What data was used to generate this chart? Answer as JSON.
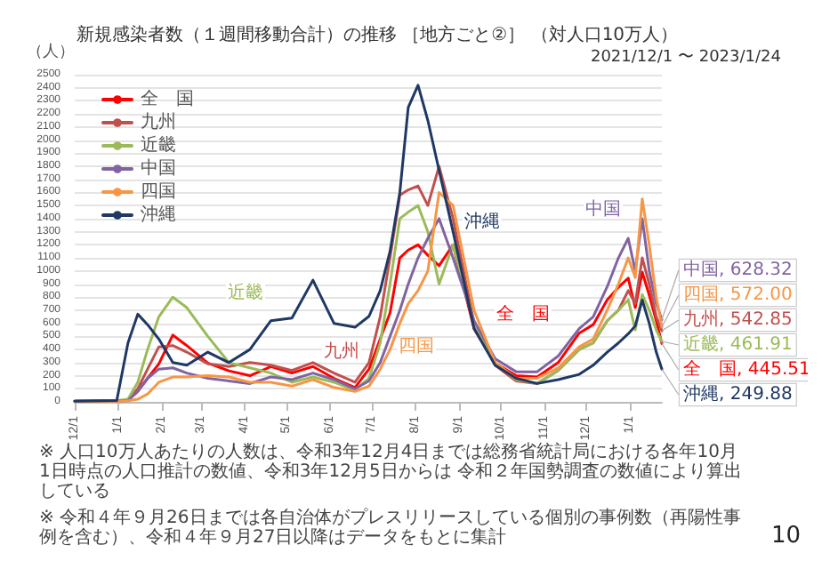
{
  "chart_data": {
    "type": "line",
    "title": "新規感染者数（１週間移動合計）の推移 ［地方ごと②］ （対人口10万人）",
    "subtitle": "2021/12/1 〜 2023/1/24",
    "ylabel": "（人）",
    "x": [
      "2021-12-01",
      "2021-12-31",
      "2022-01-08",
      "2022-01-15",
      "2022-01-22",
      "2022-01-30",
      "2022-02-09",
      "2022-02-19",
      "2022-03-06",
      "2022-03-21",
      "2022-04-05",
      "2022-04-20",
      "2022-05-05",
      "2022-05-20",
      "2022-06-04",
      "2022-06-19",
      "2022-06-29",
      "2022-07-07",
      "2022-07-14",
      "2022-07-21",
      "2022-07-27",
      "2022-08-03",
      "2022-08-10",
      "2022-08-18",
      "2022-08-28",
      "2022-09-12",
      "2022-09-27",
      "2022-10-12",
      "2022-10-27",
      "2022-11-11",
      "2022-11-26",
      "2022-12-06",
      "2022-12-16",
      "2022-12-24",
      "2022-12-31",
      "2023-01-05",
      "2023-01-10",
      "2023-01-15",
      "2023-01-20",
      "2023-01-24"
    ],
    "series": [
      {
        "name": "全　国",
        "color": "#ff0000",
        "values": [
          5,
          8,
          10,
          80,
          180,
          290,
          510,
          430,
          297,
          237,
          200,
          270,
          220,
          270,
          180,
          110,
          250,
          480,
          680,
          1100,
          1160,
          1200,
          1120,
          1040,
          1200,
          557,
          297,
          200,
          190,
          300,
          525,
          590,
          780,
          875,
          945,
          720,
          990,
          815,
          620,
          445.51
        ],
        "value_labels": [
          null,
          null,
          null,
          null,
          null,
          null,
          null,
          null,
          null,
          null,
          null,
          null,
          null,
          null,
          null,
          null,
          null,
          null,
          null,
          null,
          null,
          null,
          null,
          null,
          null,
          null,
          null,
          null,
          null,
          null,
          null,
          null,
          null,
          null,
          null,
          null,
          null,
          null,
          null,
          "全　国, 445.51"
        ]
      },
      {
        "name": "九州",
        "color": "#c0504d",
        "values": [
          5,
          8,
          12,
          100,
          250,
          420,
          430,
          380,
          290,
          270,
          300,
          280,
          240,
          300,
          220,
          150,
          300,
          650,
          1100,
          1580,
          1620,
          1650,
          1500,
          1800,
          1400,
          600,
          280,
          160,
          140,
          240,
          400,
          450,
          620,
          700,
          850,
          750,
          1100,
          900,
          650,
          542.85
        ],
        "value_labels": [
          null,
          null,
          null,
          null,
          null,
          null,
          null,
          null,
          null,
          null,
          null,
          null,
          null,
          null,
          null,
          null,
          null,
          null,
          null,
          null,
          null,
          null,
          null,
          null,
          null,
          null,
          null,
          null,
          null,
          null,
          null,
          null,
          null,
          null,
          null,
          null,
          null,
          null,
          null,
          "九州, 542.85"
        ]
      },
      {
        "name": "近畿",
        "color": "#9bbb59",
        "values": [
          5,
          8,
          20,
          150,
          400,
          650,
          800,
          720,
          500,
          300,
          260,
          220,
          150,
          190,
          150,
          90,
          180,
          450,
          900,
          1400,
          1450,
          1500,
          1300,
          900,
          1200,
          600,
          300,
          170,
          140,
          240,
          400,
          450,
          620,
          700,
          780,
          550,
          820,
          700,
          550,
          461.91
        ],
        "value_labels": [
          null,
          null,
          null,
          null,
          null,
          null,
          null,
          null,
          null,
          null,
          null,
          null,
          null,
          null,
          null,
          null,
          null,
          null,
          null,
          null,
          null,
          null,
          null,
          null,
          null,
          null,
          null,
          null,
          null,
          null,
          null,
          null,
          null,
          null,
          null,
          null,
          null,
          null,
          null,
          "近畿, 461.91"
        ]
      },
      {
        "name": "中国",
        "color": "#8064a2",
        "values": [
          5,
          8,
          10,
          80,
          180,
          250,
          260,
          220,
          180,
          160,
          140,
          190,
          170,
          220,
          170,
          100,
          160,
          300,
          500,
          700,
          900,
          1100,
          1250,
          1400,
          1100,
          620,
          330,
          230,
          230,
          350,
          560,
          650,
          880,
          1100,
          1250,
          1000,
          1400,
          1000,
          750,
          628.32
        ],
        "value_labels": [
          null,
          null,
          null,
          null,
          null,
          null,
          null,
          null,
          null,
          null,
          null,
          null,
          null,
          null,
          null,
          null,
          null,
          null,
          null,
          null,
          null,
          null,
          null,
          null,
          null,
          null,
          null,
          null,
          null,
          null,
          null,
          null,
          null,
          null,
          null,
          null,
          null,
          null,
          null,
          "中国, 628.32"
        ]
      },
      {
        "name": "四国",
        "color": "#f79646",
        "values": [
          3,
          5,
          8,
          20,
          60,
          150,
          190,
          190,
          200,
          190,
          150,
          150,
          120,
          170,
          110,
          80,
          120,
          250,
          400,
          600,
          750,
          850,
          1000,
          1600,
          1500,
          700,
          300,
          180,
          180,
          260,
          420,
          480,
          700,
          900,
          1100,
          950,
          1550,
          1200,
          800,
          572.0
        ],
        "value_labels": [
          null,
          null,
          null,
          null,
          null,
          null,
          null,
          null,
          null,
          null,
          null,
          null,
          null,
          null,
          null,
          null,
          null,
          null,
          null,
          null,
          null,
          null,
          null,
          null,
          null,
          null,
          null,
          null,
          null,
          null,
          null,
          null,
          null,
          null,
          null,
          null,
          null,
          null,
          null,
          "四国, 572.00"
        ]
      },
      {
        "name": "沖縄",
        "color": "#1f3864",
        "values": [
          5,
          10,
          450,
          670,
          590,
          480,
          300,
          280,
          380,
          300,
          400,
          620,
          640,
          930,
          600,
          570,
          654,
          850,
          1150,
          1600,
          2250,
          2420,
          2150,
          1770,
          1300,
          560,
          280,
          180,
          140,
          170,
          210,
          280,
          380,
          450,
          520,
          580,
          778,
          600,
          380,
          249.88
        ],
        "value_labels": [
          null,
          null,
          null,
          null,
          null,
          null,
          null,
          null,
          null,
          null,
          null,
          null,
          null,
          null,
          null,
          null,
          null,
          null,
          null,
          null,
          null,
          null,
          null,
          null,
          null,
          null,
          null,
          null,
          null,
          null,
          null,
          null,
          null,
          null,
          null,
          null,
          null,
          null,
          null,
          "沖縄, 249.88"
        ]
      }
    ],
    "xlim": [
      "2021-12-01",
      "2023-01-24"
    ],
    "ylim": [
      0,
      2500
    ],
    "yticks": [
      0,
      100,
      200,
      300,
      400,
      500,
      600,
      700,
      800,
      900,
      1000,
      1100,
      1200,
      1300,
      1400,
      1500,
      1600,
      1700,
      1800,
      1900,
      2000,
      2100,
      2200,
      2300,
      2400,
      2500
    ],
    "xticks": [
      {
        "value": "2021-12-01",
        "label": "12/1"
      },
      {
        "value": "2022-01-01",
        "label": "1/1"
      },
      {
        "value": "2022-02-01",
        "label": "2/1"
      },
      {
        "value": "2022-03-01",
        "label": "3/1"
      },
      {
        "value": "2022-04-01",
        "label": "4/1"
      },
      {
        "value": "2022-05-01",
        "label": "5/1"
      },
      {
        "value": "2022-06-01",
        "label": "6/1"
      },
      {
        "value": "2022-07-01",
        "label": "7/1"
      },
      {
        "value": "2022-08-01",
        "label": "8/1"
      },
      {
        "value": "2022-09-01",
        "label": "9/1"
      },
      {
        "value": "2022-10-01",
        "label": "10/1"
      },
      {
        "value": "2022-11-01",
        "label": "11/1"
      },
      {
        "value": "2022-12-01",
        "label": "12/1"
      },
      {
        "value": "2023-01-01",
        "label": "1/1"
      }
    ],
    "grid": "y",
    "legend": "top left",
    "marker": "none",
    "line_style": "solid",
    "annotations": [
      "※ 人口10万人あたりの人数は、令和3年12月4日までは総務省統計局における各年10月1日時点の人口推計の数値、令和3年12月5日からは 令和２年国勢調査の数値により算出している",
      "※ 令和４年９月26日までは各自治体がプレスリリースしている個別の事例数（再陽性事例を含む）、令和４年９月27日以降はデータをもとに集計",
      "10",
      "近畿",
      "九州",
      "中国",
      "四国",
      "沖縄",
      "全　国"
    ]
  }
}
